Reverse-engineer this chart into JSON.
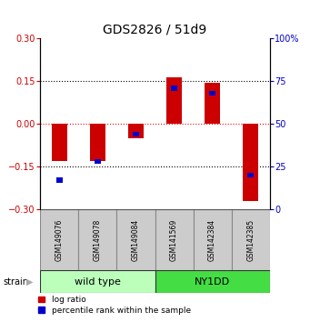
{
  "title": "GDS2826 / 51d9",
  "samples": [
    "GSM149076",
    "GSM149078",
    "GSM149084",
    "GSM141569",
    "GSM142384",
    "GSM142385"
  ],
  "log_ratios": [
    -0.13,
    -0.13,
    -0.05,
    0.165,
    0.145,
    -0.27
  ],
  "percentile_ranks": [
    17,
    28,
    44,
    71,
    68,
    20
  ],
  "groups": [
    {
      "label": "wild type",
      "start": 0,
      "end": 3,
      "color": "#bbffbb"
    },
    {
      "label": "NY1DD",
      "start": 3,
      "end": 6,
      "color": "#44dd44"
    }
  ],
  "ylim_left": [
    -0.3,
    0.3
  ],
  "ylim_right": [
    0,
    100
  ],
  "left_ticks": [
    -0.3,
    -0.15,
    0,
    0.15,
    0.3
  ],
  "right_ticks": [
    0,
    25,
    50,
    75,
    100
  ],
  "left_color": "#cc0000",
  "right_color": "#0000cc",
  "bar_color_red": "#cc0000",
  "bar_color_blue": "#0000cc",
  "bar_width": 0.4,
  "blue_bar_width": 0.18,
  "blue_bar_height": 0.018,
  "background_color": "#ffffff",
  "sample_cell_color": "#cccccc",
  "sample_cell_edge": "#888888",
  "title_fontsize": 10,
  "tick_fontsize": 7,
  "sample_fontsize": 5.5,
  "group_fontsize": 8,
  "legend_fontsize": 6.5
}
